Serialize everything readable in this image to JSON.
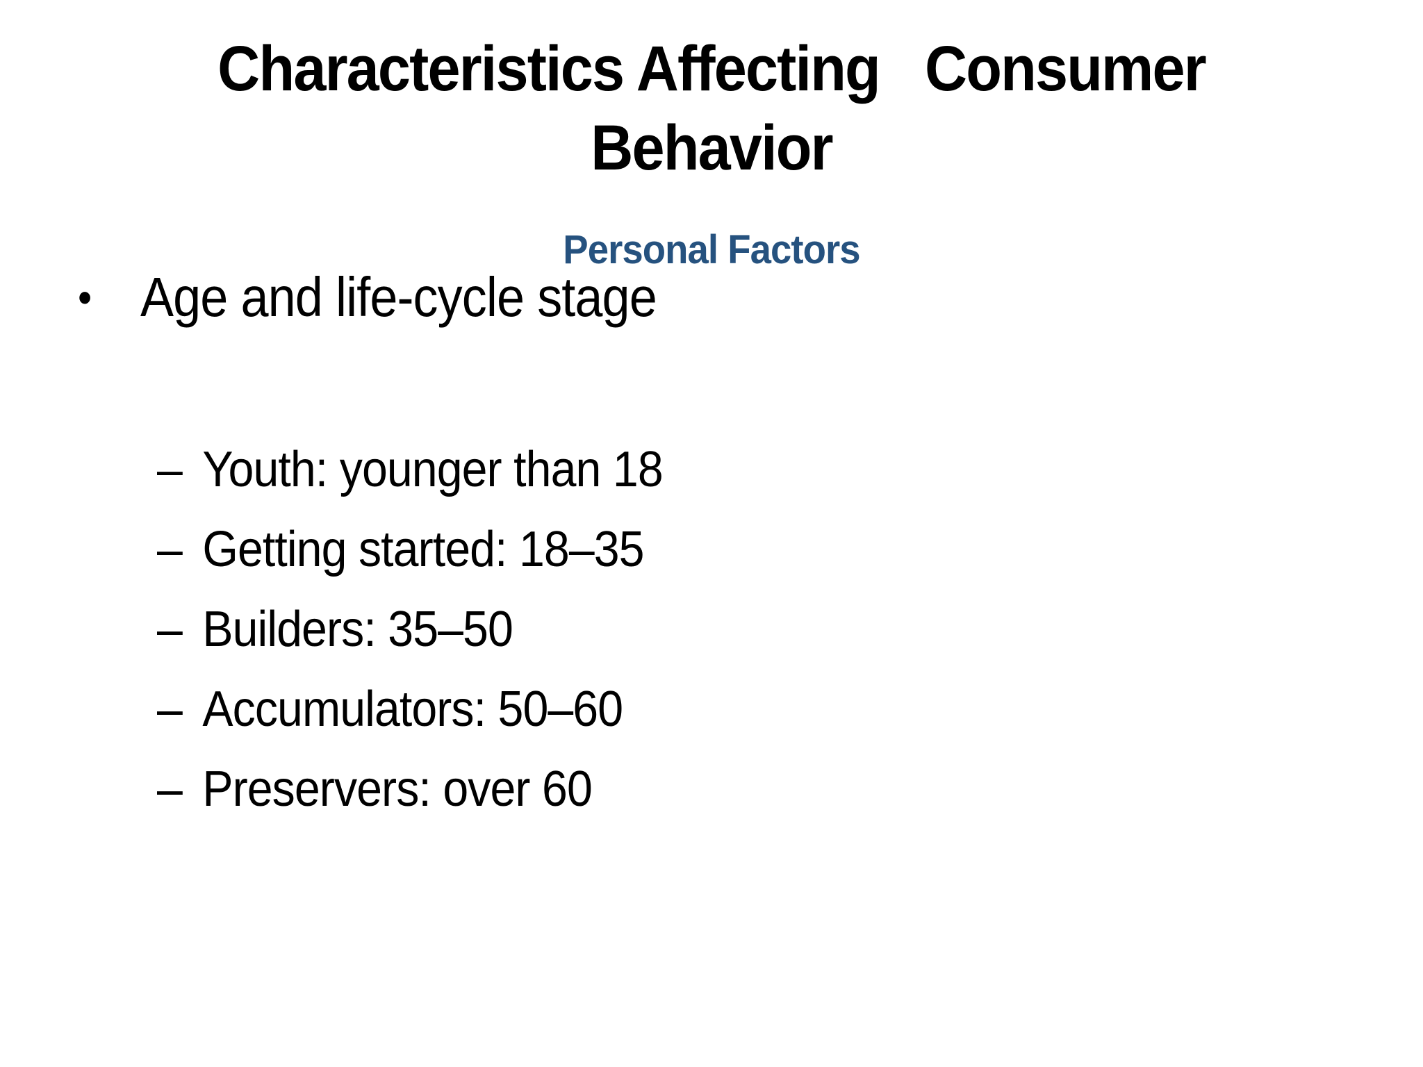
{
  "slide": {
    "title_lines": [
      "Characteristics Affecting   Consumer",
      "Behavior"
    ],
    "subtitle": "Personal Factors",
    "bullet": {
      "marker": "•",
      "text": "Age and life-cycle stage"
    },
    "sub_bullets": [
      {
        "marker": "–",
        "text": "Youth: younger than 18"
      },
      {
        "marker": "–",
        "text": "Getting started: 18–35"
      },
      {
        "marker": "–",
        "text": "Builders: 35–50"
      },
      {
        "marker": "–",
        "text": "Accumulators: 50–60"
      },
      {
        "marker": "–",
        "text": "Preservers: over 60"
      }
    ],
    "colors": {
      "background": "#FFFFFF",
      "title_text": "#000000",
      "subtitle_text": "#26527F",
      "body_text": "#000000"
    }
  }
}
